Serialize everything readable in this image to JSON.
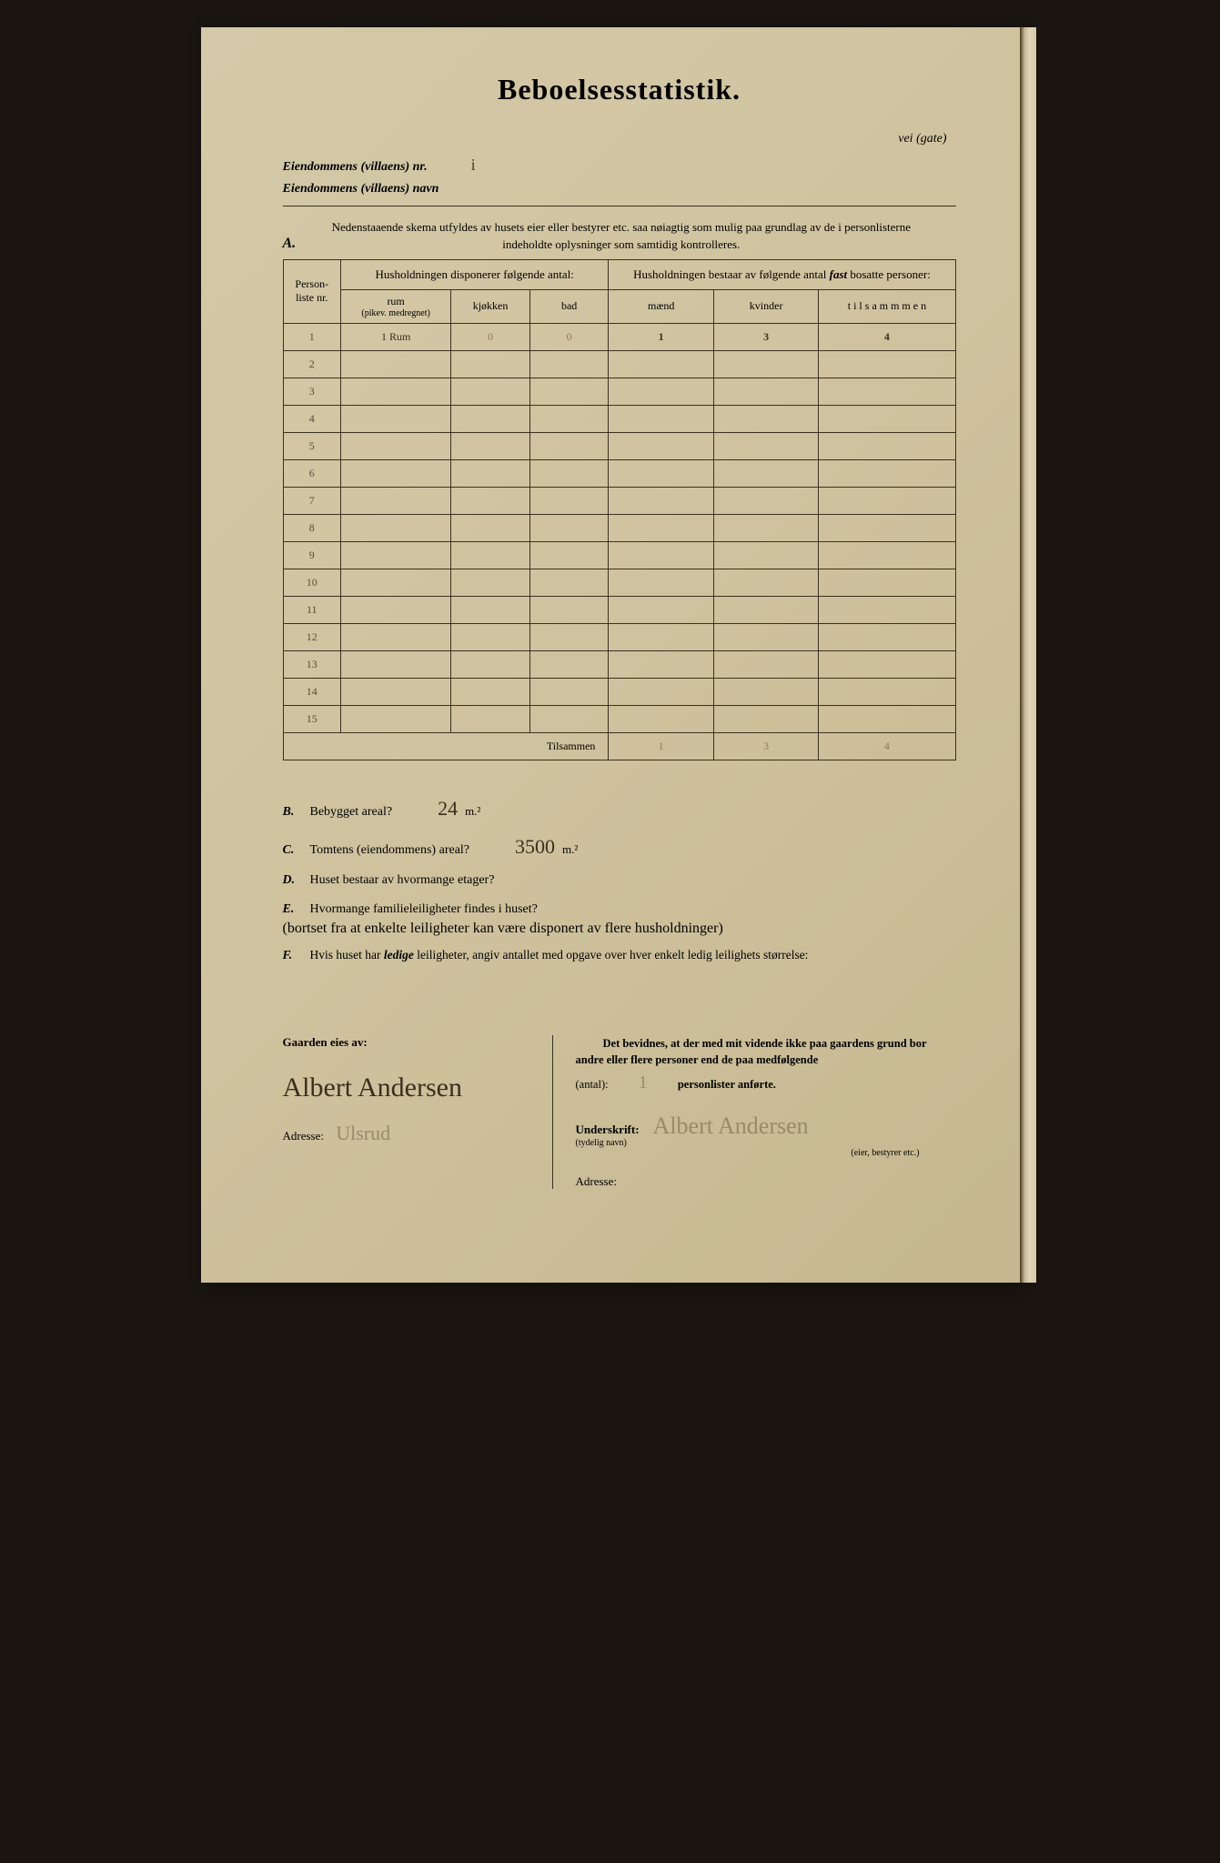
{
  "title": "Beboelsesstatistik.",
  "header": {
    "vei_gate": "vei (gate)",
    "nr_label": "Eiendommens (villaens) nr.",
    "nr_value": "i",
    "navn_label": "Eiendommens (villaens) navn",
    "navn_value": ""
  },
  "sectionA": {
    "letter": "A.",
    "text": "Nedenstaaende skema utfyldes av husets eier eller bestyrer etc. saa nøiagtig som mulig paa grundlag av de i personlisterne indeholdte oplysninger som samtidig kontrolleres."
  },
  "table": {
    "col_personliste": "Person-liste nr.",
    "group_left": "Husholdningen disponerer følgende antal:",
    "group_right_prefix": "Husholdningen bestaar av følgende antal ",
    "group_right_fast": "fast",
    "group_right_suffix": " bosatte personer:",
    "col_rum": "rum",
    "col_rum_sub": "(pikev. medregnet)",
    "col_kjokken": "kjøkken",
    "col_bad": "bad",
    "col_maend": "mænd",
    "col_kvinder": "kvinder",
    "col_tilsammen": "t i l s a m m m e n",
    "rows": [
      {
        "nr": "1",
        "rum": "1 Rum",
        "kjokken": "0",
        "bad": "0",
        "maend": "1",
        "kvinder": "3",
        "tilsammen": "4"
      },
      {
        "nr": "2",
        "rum": "",
        "kjokken": "",
        "bad": "",
        "maend": "",
        "kvinder": "",
        "tilsammen": ""
      },
      {
        "nr": "3",
        "rum": "",
        "kjokken": "",
        "bad": "",
        "maend": "",
        "kvinder": "",
        "tilsammen": ""
      },
      {
        "nr": "4",
        "rum": "",
        "kjokken": "",
        "bad": "",
        "maend": "",
        "kvinder": "",
        "tilsammen": ""
      },
      {
        "nr": "5",
        "rum": "",
        "kjokken": "",
        "bad": "",
        "maend": "",
        "kvinder": "",
        "tilsammen": ""
      },
      {
        "nr": "6",
        "rum": "",
        "kjokken": "",
        "bad": "",
        "maend": "",
        "kvinder": "",
        "tilsammen": ""
      },
      {
        "nr": "7",
        "rum": "",
        "kjokken": "",
        "bad": "",
        "maend": "",
        "kvinder": "",
        "tilsammen": ""
      },
      {
        "nr": "8",
        "rum": "",
        "kjokken": "",
        "bad": "",
        "maend": "",
        "kvinder": "",
        "tilsammen": ""
      },
      {
        "nr": "9",
        "rum": "",
        "kjokken": "",
        "bad": "",
        "maend": "",
        "kvinder": "",
        "tilsammen": ""
      },
      {
        "nr": "10",
        "rum": "",
        "kjokken": "",
        "bad": "",
        "maend": "",
        "kvinder": "",
        "tilsammen": ""
      },
      {
        "nr": "11",
        "rum": "",
        "kjokken": "",
        "bad": "",
        "maend": "",
        "kvinder": "",
        "tilsammen": ""
      },
      {
        "nr": "12",
        "rum": "",
        "kjokken": "",
        "bad": "",
        "maend": "",
        "kvinder": "",
        "tilsammen": ""
      },
      {
        "nr": "13",
        "rum": "",
        "kjokken": "",
        "bad": "",
        "maend": "",
        "kvinder": "",
        "tilsammen": ""
      },
      {
        "nr": "14",
        "rum": "",
        "kjokken": "",
        "bad": "",
        "maend": "",
        "kvinder": "",
        "tilsammen": ""
      },
      {
        "nr": "15",
        "rum": "",
        "kjokken": "",
        "bad": "",
        "maend": "",
        "kvinder": "",
        "tilsammen": ""
      }
    ],
    "tilsammen_label": "Tilsammen",
    "totals": {
      "maend": "1",
      "kvinder": "3",
      "tilsammen": "4"
    }
  },
  "questions": {
    "B": {
      "letter": "B.",
      "text": "Bebygget areal?",
      "answer": "24",
      "unit": "m.²"
    },
    "C": {
      "letter": "C.",
      "text": "Tomtens (eiendommens) areal?",
      "answer": "3500",
      "unit": "m.²"
    },
    "D": {
      "letter": "D.",
      "text": "Huset bestaar av hvormange etager?",
      "answer": ""
    },
    "E": {
      "letter": "E.",
      "text": "Hvormange familieleiligheter findes i huset?",
      "sub": "(bortset fra at enkelte leiligheter kan være disponert av flere husholdninger)",
      "answer": ""
    },
    "F": {
      "letter": "F.",
      "text_prefix": "Hvis huset har ",
      "text_ledige": "ledige",
      "text_suffix": " leiligheter, angiv antallet med opgave over hver enkelt ledig leilighets størrelse:"
    }
  },
  "bottom": {
    "left_heading": "Gaarden eies av:",
    "owner_sig": "Albert Andersen",
    "left_adresse_label": "Adresse:",
    "left_adresse_value": "Ulsrud",
    "right_statement_prefix": "Det bevidnes, at der med mit vidende ikke paa gaardens grund bor andre eller flere personer end de paa medfølgende",
    "right_antal_label": "(antal):",
    "right_antal_value": "1",
    "right_personlister": "personlister anførte.",
    "underskrift_label": "Underskrift:",
    "underskrift_sub": "(tydelig navn)",
    "underskrift_value": "Albert Andersen",
    "eier_note": "(eier, bestyrer etc.)",
    "right_adresse_label": "Adresse:",
    "right_adresse_value": ""
  },
  "colors": {
    "paper": "#d4c9a8",
    "ink": "#3a3020",
    "handwriting": "#3a2f1f",
    "handwriting_light": "#9a8a6a",
    "background": "#1a1510"
  }
}
